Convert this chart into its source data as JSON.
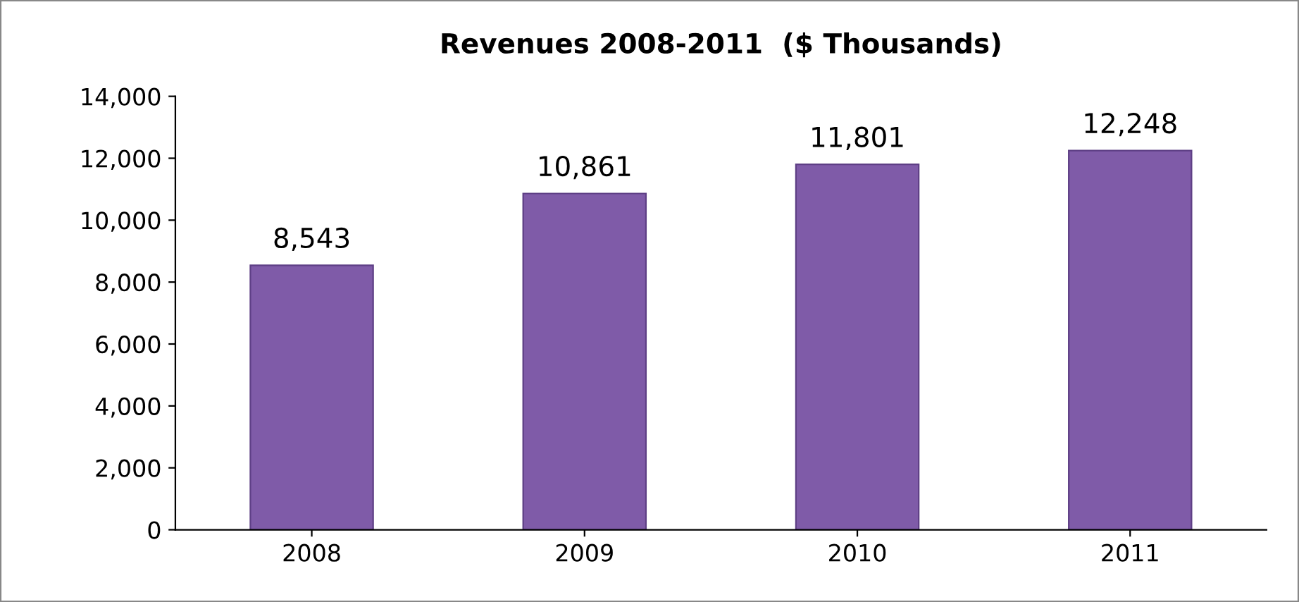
{
  "chart_data": {
    "type": "bar",
    "title": "Revenues 2008-2011  ($ Thousands)",
    "categories": [
      "2008",
      "2009",
      "2010",
      "2011"
    ],
    "values": [
      8543,
      10861,
      11801,
      12248
    ],
    "value_labels": [
      "8,543",
      "10,861",
      "11,801",
      "12,248"
    ],
    "color": "#7f5ba8",
    "ylim": [
      0,
      14000
    ],
    "yticks": [
      {
        "value": 0,
        "label": "0"
      },
      {
        "value": 2000,
        "label": "2,000"
      },
      {
        "value": 4000,
        "label": "4,000"
      },
      {
        "value": 6000,
        "label": "6,000"
      },
      {
        "value": 8000,
        "label": "8,000"
      },
      {
        "value": 10000,
        "label": "10,000"
      },
      {
        "value": 12000,
        "label": "12,000"
      },
      {
        "value": 14000,
        "label": "14,000"
      }
    ],
    "grid": false,
    "legend": false
  }
}
